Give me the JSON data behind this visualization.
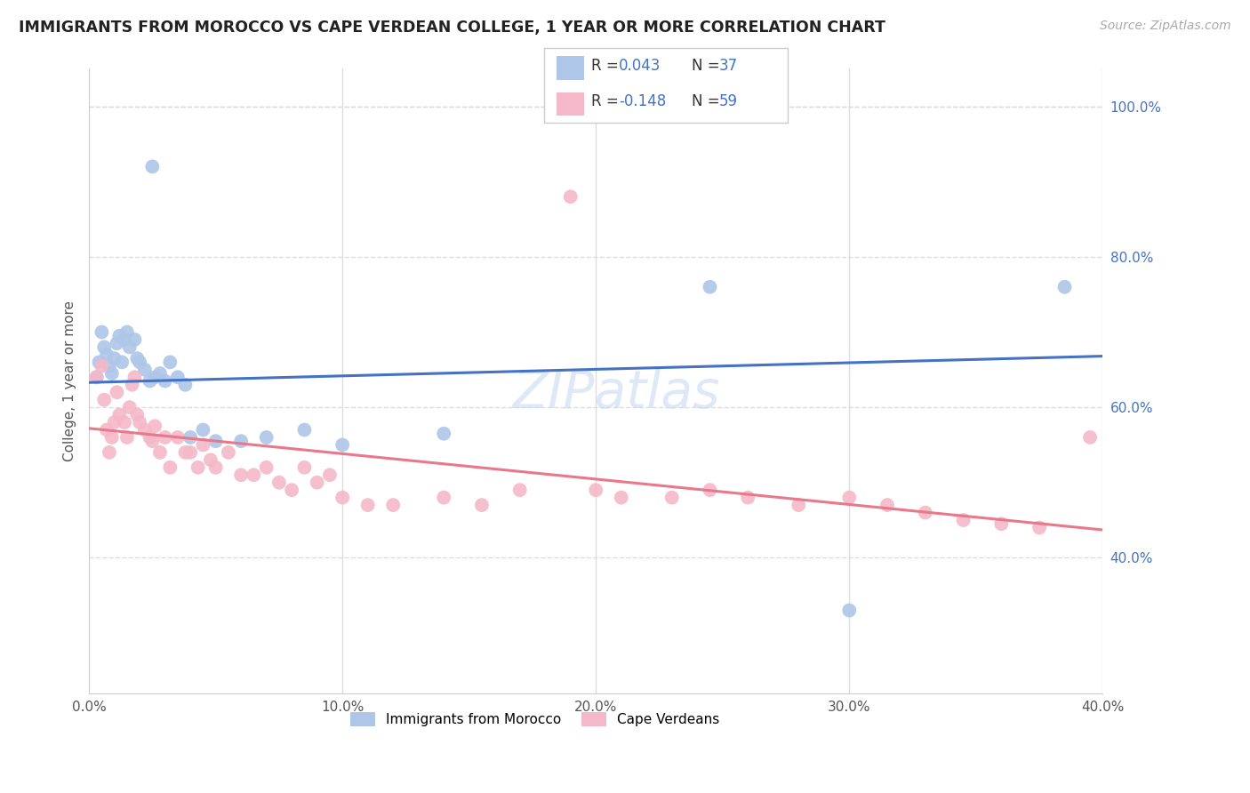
{
  "title": "IMMIGRANTS FROM MOROCCO VS CAPE VERDEAN COLLEGE, 1 YEAR OR MORE CORRELATION CHART",
  "source": "Source: ZipAtlas.com",
  "ylabel": "College, 1 year or more",
  "xlim": [
    0.0,
    0.4
  ],
  "ylim": [
    0.22,
    1.05
  ],
  "x_ticks": [
    0.0,
    0.1,
    0.2,
    0.3,
    0.4
  ],
  "x_tick_labels": [
    "0.0%",
    "10.0%",
    "20.0%",
    "30.0%",
    "40.0%"
  ],
  "y_ticks_right": [
    0.4,
    0.6,
    0.8,
    1.0
  ],
  "y_tick_labels_right": [
    "40.0%",
    "60.0%",
    "80.0%",
    "100.0%"
  ],
  "morocco_color": "#aec6e8",
  "cape_verdean_color": "#f4b8c8",
  "morocco_N": 37,
  "cape_verdean_N": 59,
  "morocco_line_color": "#4472c4",
  "cape_verdean_line_color": "#e8788a",
  "morocco_line_y0": 0.633,
  "morocco_line_y1": 0.668,
  "cape_line_y0": 0.572,
  "cape_line_y1": 0.437,
  "watermark_color": "#c8daf0",
  "grid_color": "#dddddd",
  "background_color": "#ffffff",
  "morocco_scatter_x": [
    0.003,
    0.004,
    0.005,
    0.006,
    0.007,
    0.008,
    0.009,
    0.01,
    0.011,
    0.012,
    0.013,
    0.014,
    0.015,
    0.016,
    0.018,
    0.019,
    0.02,
    0.022,
    0.024,
    0.025,
    0.026,
    0.028,
    0.03,
    0.032,
    0.035,
    0.038,
    0.04,
    0.045,
    0.05,
    0.06,
    0.07,
    0.085,
    0.1,
    0.14,
    0.245,
    0.3,
    0.385
  ],
  "morocco_scatter_y": [
    0.64,
    0.66,
    0.7,
    0.68,
    0.67,
    0.655,
    0.645,
    0.665,
    0.685,
    0.695,
    0.66,
    0.69,
    0.7,
    0.68,
    0.69,
    0.665,
    0.66,
    0.65,
    0.635,
    0.92,
    0.64,
    0.645,
    0.635,
    0.66,
    0.64,
    0.63,
    0.56,
    0.57,
    0.555,
    0.555,
    0.56,
    0.57,
    0.55,
    0.565,
    0.76,
    0.33,
    0.76
  ],
  "cape_scatter_x": [
    0.003,
    0.005,
    0.006,
    0.007,
    0.008,
    0.009,
    0.01,
    0.011,
    0.012,
    0.014,
    0.015,
    0.016,
    0.017,
    0.018,
    0.019,
    0.02,
    0.022,
    0.024,
    0.025,
    0.026,
    0.028,
    0.03,
    0.032,
    0.035,
    0.038,
    0.04,
    0.043,
    0.045,
    0.048,
    0.05,
    0.055,
    0.06,
    0.065,
    0.07,
    0.075,
    0.08,
    0.085,
    0.09,
    0.095,
    0.1,
    0.11,
    0.12,
    0.14,
    0.155,
    0.17,
    0.19,
    0.2,
    0.21,
    0.23,
    0.245,
    0.26,
    0.28,
    0.3,
    0.315,
    0.33,
    0.345,
    0.36,
    0.375,
    0.395
  ],
  "cape_scatter_y": [
    0.64,
    0.655,
    0.61,
    0.57,
    0.54,
    0.56,
    0.58,
    0.62,
    0.59,
    0.58,
    0.56,
    0.6,
    0.63,
    0.64,
    0.59,
    0.58,
    0.57,
    0.56,
    0.555,
    0.575,
    0.54,
    0.56,
    0.52,
    0.56,
    0.54,
    0.54,
    0.52,
    0.55,
    0.53,
    0.52,
    0.54,
    0.51,
    0.51,
    0.52,
    0.5,
    0.49,
    0.52,
    0.5,
    0.51,
    0.48,
    0.47,
    0.47,
    0.48,
    0.47,
    0.49,
    0.88,
    0.49,
    0.48,
    0.48,
    0.49,
    0.48,
    0.47,
    0.48,
    0.47,
    0.46,
    0.45,
    0.445,
    0.44,
    0.56
  ]
}
